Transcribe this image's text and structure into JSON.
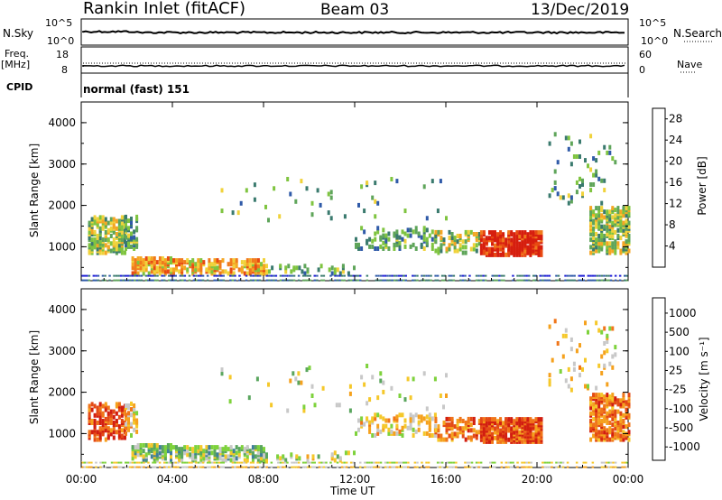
{
  "header": {
    "station": "Rankin Inlet (fitACF)",
    "beam": "Beam 03",
    "date": "13/Dec/2019"
  },
  "top_panels": {
    "nsky_label": "N.Sky",
    "nsky_ticks": [
      "10^5",
      "10^0"
    ],
    "nsearch_label": "N.Search",
    "nsearch_ticks": [
      "10^5",
      "10^0"
    ],
    "freq_label": "Freq.",
    "freq_unit": "[MHz]",
    "freq_ticks": [
      "18",
      "8"
    ],
    "nave_label": "Nave",
    "nave_ticks": [
      "60",
      "0"
    ],
    "cpid_label": "CPID",
    "cpid_value": "normal (fast) 151"
  },
  "chart_data": [
    {
      "type": "heatmap",
      "name": "power",
      "ylabel": "Slant Range [km]",
      "xlabel": "Time UT",
      "ylim": [
        180,
        4500
      ],
      "yticks": [
        "1000",
        "2000",
        "3000",
        "4000"
      ],
      "xticks": [
        "00:00",
        "04:00",
        "08:00",
        "12:00",
        "16:00",
        "20:00",
        "00:00"
      ],
      "colorbar": {
        "label": "Power [dB]",
        "ticks": [
          "4",
          "8",
          "12",
          "16",
          "20",
          "24",
          "28"
        ],
        "colors": [
          "#1f1fd6",
          "#2f5aa8",
          "#3a7a6e",
          "#5fa55a",
          "#7fc440",
          "#f0d23a",
          "#f5a623",
          "#f07a1c",
          "#e84a12",
          "#d61e0e"
        ]
      }
    },
    {
      "type": "heatmap",
      "name": "velocity",
      "ylabel": "Slant Range [km]",
      "xlabel": "Time UT",
      "ylim": [
        180,
        4500
      ],
      "yticks": [
        "1000",
        "2000",
        "3000",
        "4000"
      ],
      "xticks": [
        "00:00",
        "04:00",
        "08:00",
        "12:00",
        "16:00",
        "20:00",
        "00:00"
      ],
      "colorbar": {
        "label": "Velocity [m s⁻¹]",
        "ticks": [
          "1000",
          "500",
          "100",
          "25",
          "-25",
          "-100",
          "-500",
          "-1000"
        ],
        "colors": [
          "#1e2aa6",
          "#2f56b6",
          "#3f7f9b",
          "#5aa65e",
          "#7ed23c",
          "#c8c8c8",
          "#f5c82a",
          "#f5a11d",
          "#f0761a",
          "#e44a15",
          "#d21e10"
        ]
      }
    }
  ],
  "xaxis_title": "Time UT"
}
